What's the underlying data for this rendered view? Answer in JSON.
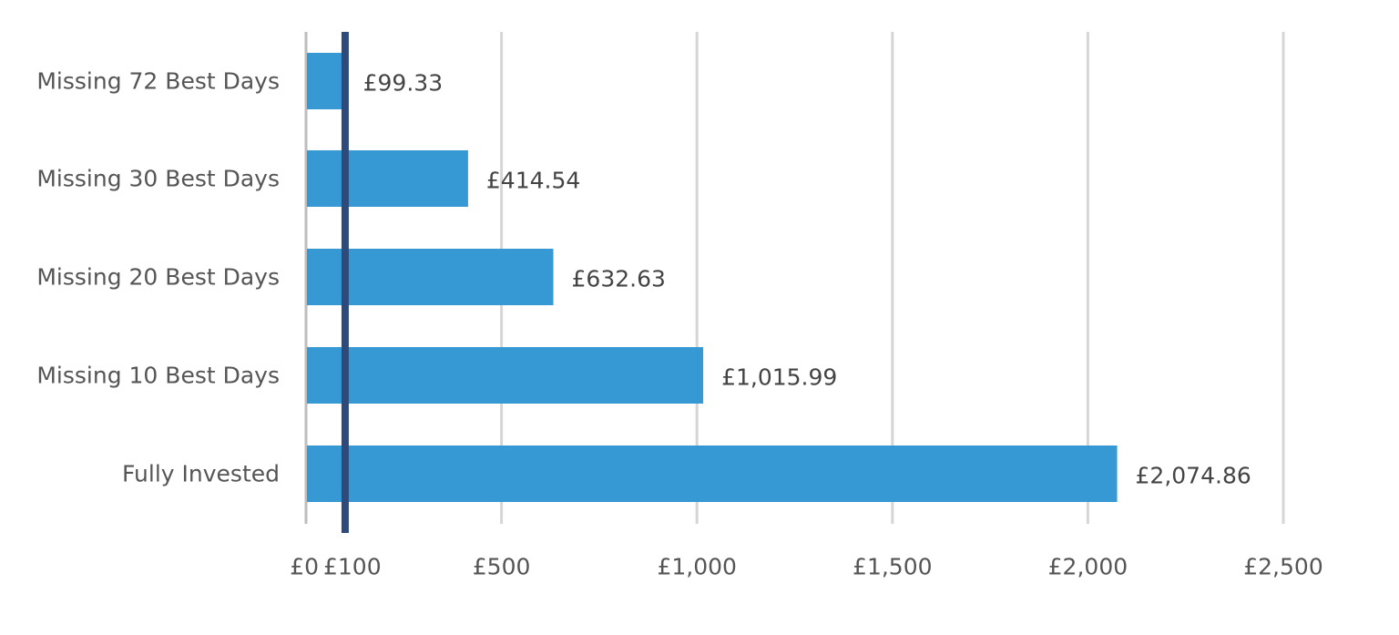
{
  "chart_data": {
    "type": "bar",
    "orientation": "horizontal",
    "categories": [
      "Missing 72 Best Days",
      "Missing 30 Best Days",
      "Missing 20 Best Days",
      "Missing 10 Best Days",
      "Fully Invested"
    ],
    "values": [
      99.33,
      414.54,
      632.63,
      1015.99,
      2074.86
    ],
    "value_labels": [
      "£99.33",
      "£414.54",
      "£632.63",
      "£1,015.99",
      "£2,074.86"
    ],
    "xlim": [
      0,
      2500
    ],
    "ticks": [
      {
        "value": 0,
        "label": "£0"
      },
      {
        "value": 100,
        "label": "£100"
      },
      {
        "value": 500,
        "label": "£500"
      },
      {
        "value": 1000,
        "label": "£1,000"
      },
      {
        "value": 1500,
        "label": "£1,500"
      },
      {
        "value": 2000,
        "label": "£2,000"
      },
      {
        "value": 2500,
        "label": "£2,500"
      }
    ],
    "gridline_values": [
      500,
      1000,
      1500,
      2000,
      2500
    ],
    "reference_line": {
      "value": 100,
      "color": "#2e4a7a"
    },
    "title": "",
    "xlabel": "",
    "ylabel": "",
    "grid": true,
    "legend": "none",
    "colors": {
      "bar": "#3799d4",
      "grid": "#d6d6d6",
      "axis": "#bdbdbd",
      "reference_line": "#2e4a7a",
      "text": "#555555"
    }
  }
}
